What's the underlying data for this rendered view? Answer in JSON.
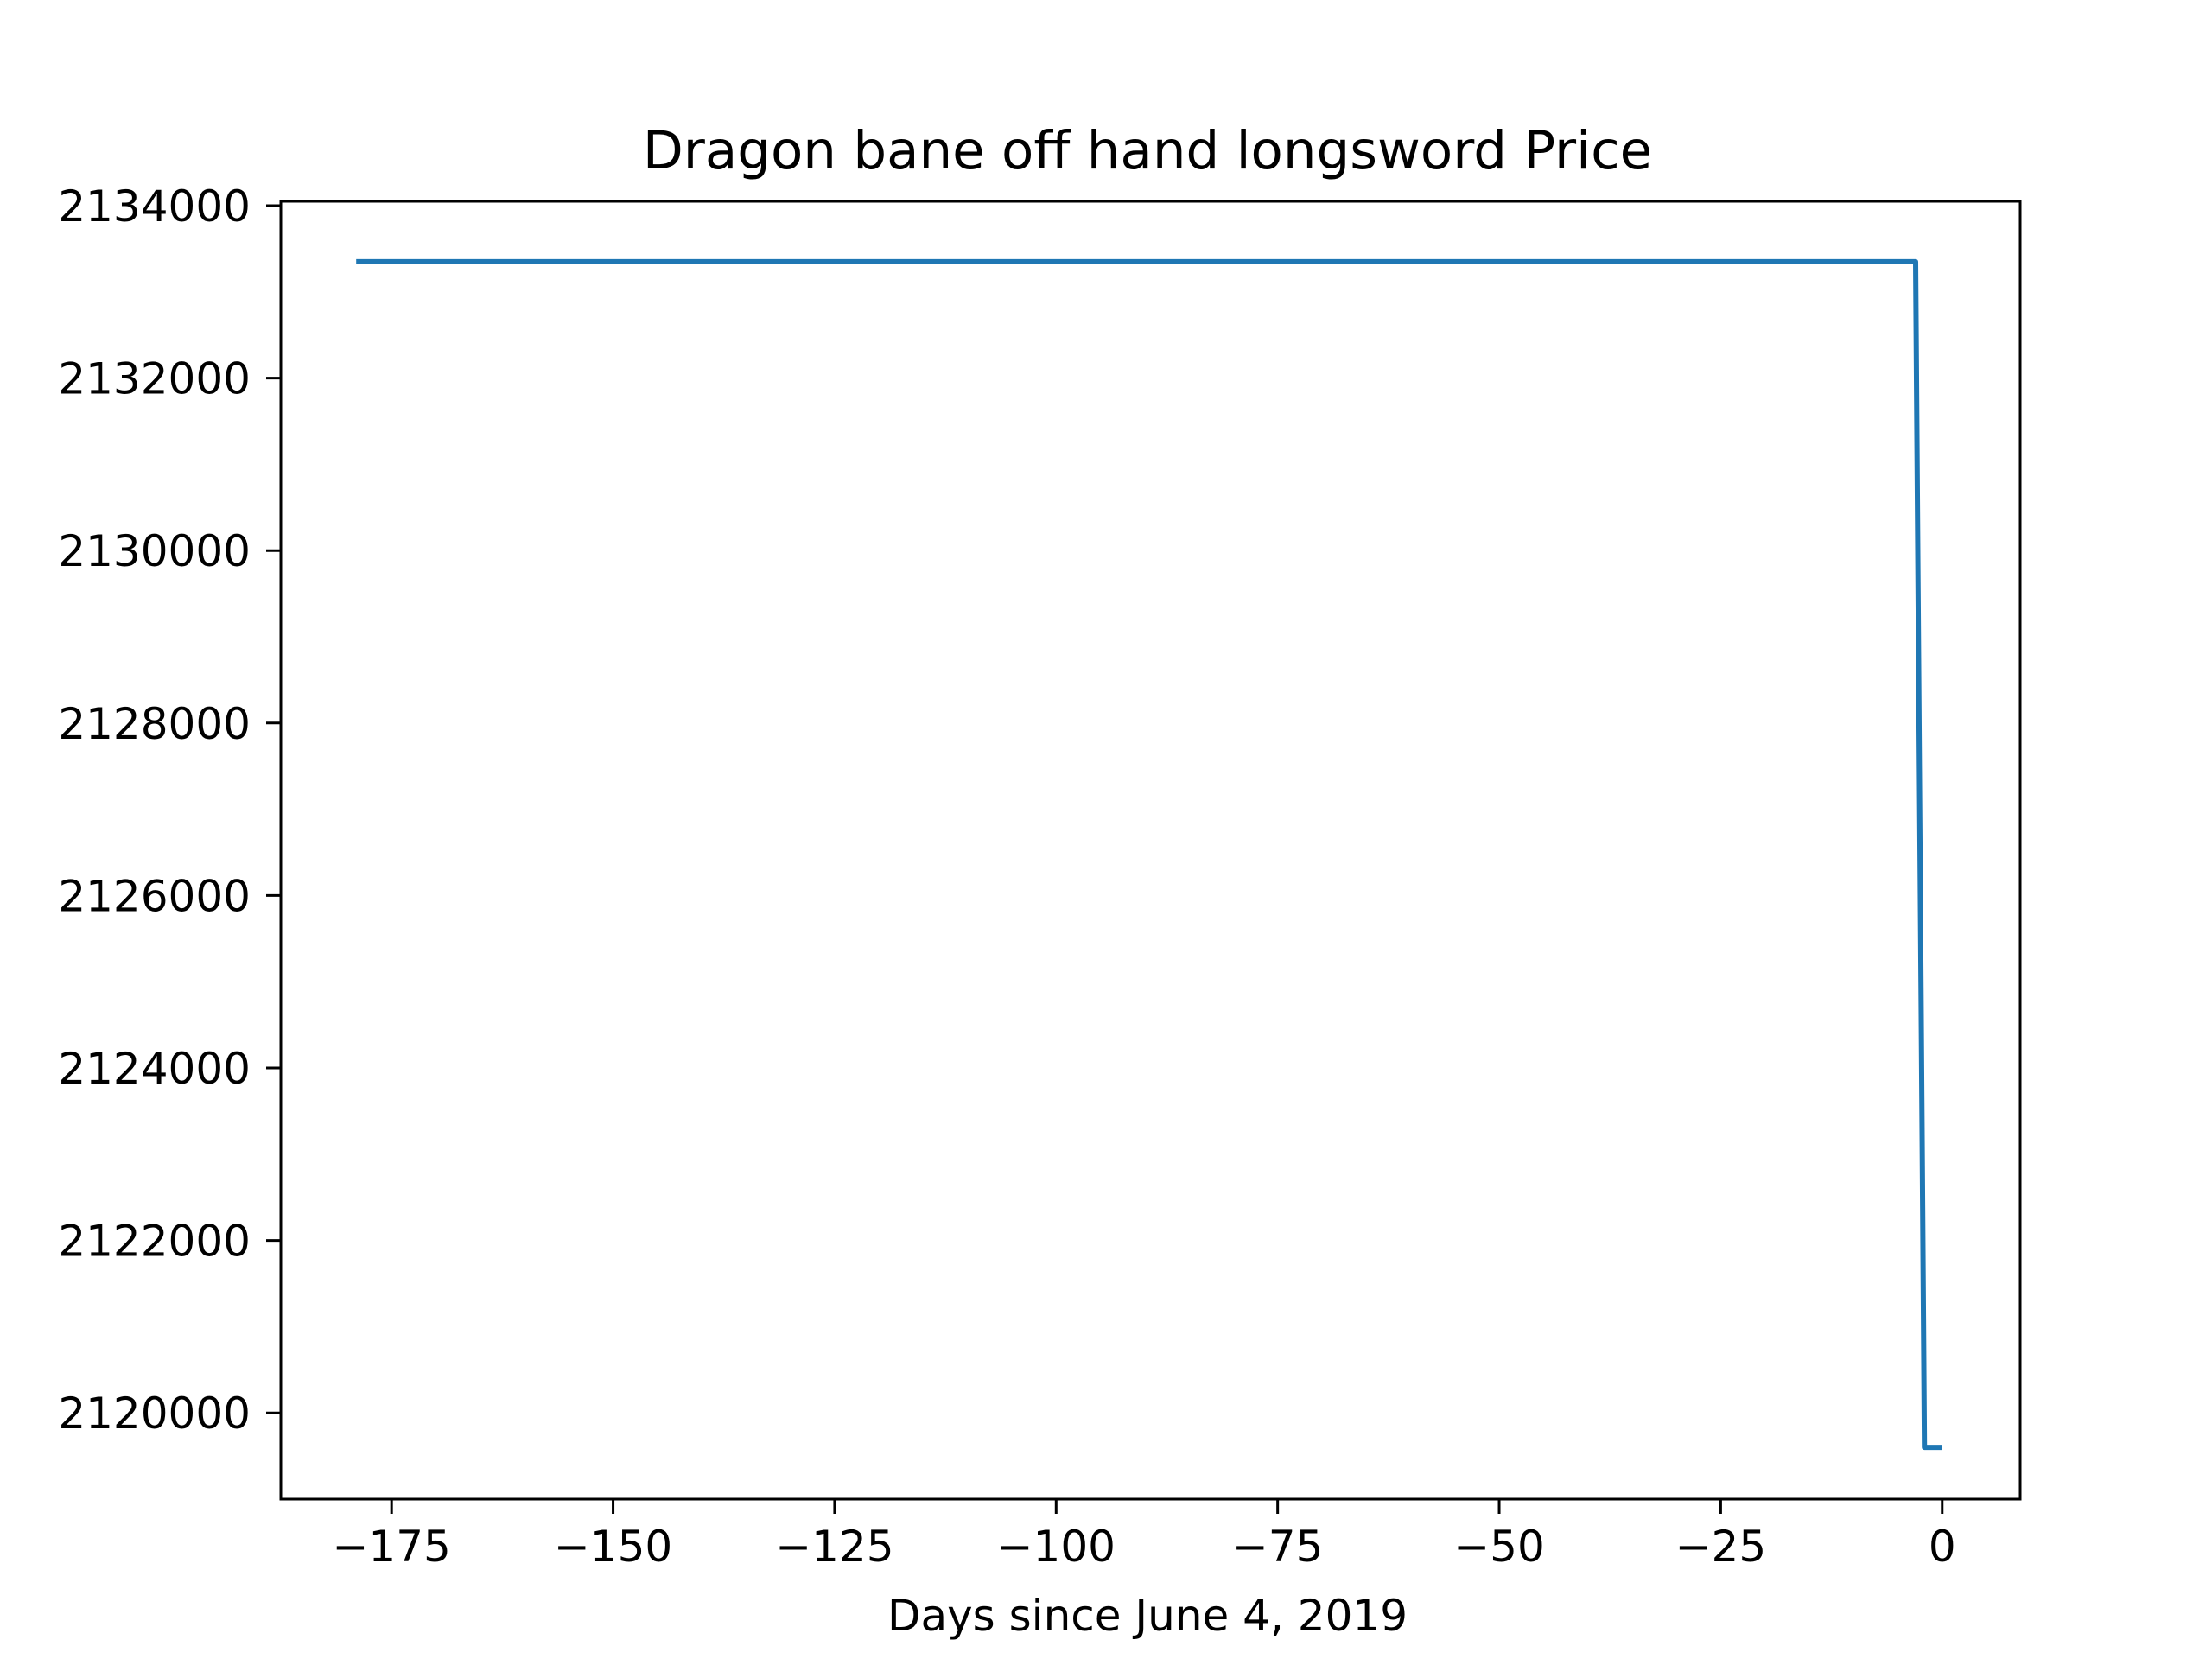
{
  "chart_data": {
    "type": "line",
    "title": "Dragon bane off hand longsword Price",
    "xlabel": "Days since June 4, 2019",
    "ylabel": "",
    "xlim": [
      -187.5,
      8.8
    ],
    "ylim": [
      2119000,
      2134050
    ],
    "x_ticks": [
      -175,
      -150,
      -125,
      -100,
      -75,
      -50,
      -25,
      0
    ],
    "x_tick_labels": [
      "−175",
      "−150",
      "−125",
      "−100",
      "−75",
      "−50",
      "−25",
      "0"
    ],
    "y_ticks": [
      2120000,
      2122000,
      2124000,
      2126000,
      2128000,
      2130000,
      2132000,
      2134000
    ],
    "y_tick_labels": [
      "2120000",
      "2122000",
      "2124000",
      "2126000",
      "2128000",
      "2130000",
      "2132000",
      "2134000"
    ],
    "grid": false,
    "series": [
      {
        "color": "#1f77b4",
        "x": [
          -179,
          -3,
          -2,
          0
        ],
        "y": [
          2133350,
          2133350,
          2119600,
          2119600
        ]
      }
    ]
  }
}
